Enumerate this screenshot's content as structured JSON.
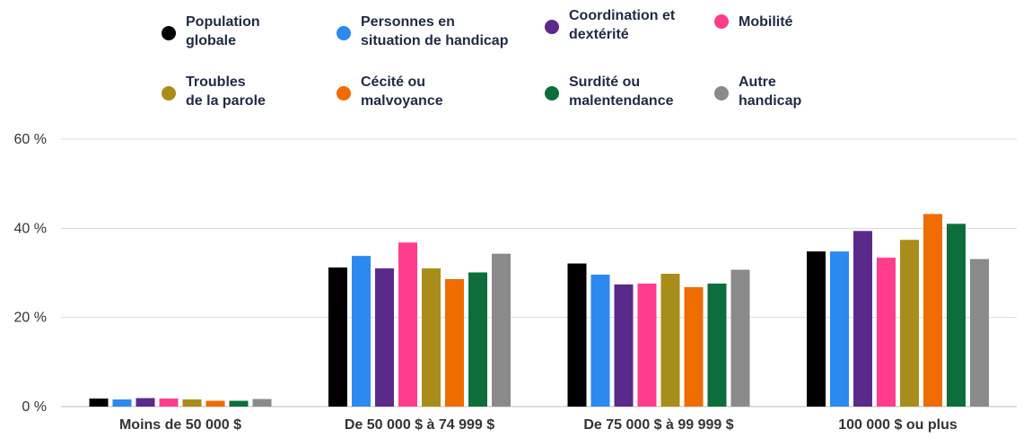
{
  "chart_data": {
    "type": "bar",
    "title": "",
    "xlabel": "",
    "ylabel": "",
    "ylim": [
      0,
      60
    ],
    "yticks": [
      0,
      20,
      40,
      60
    ],
    "ytick_labels": [
      "0 %",
      "20 %",
      "40 %",
      "60 %"
    ],
    "grid": true,
    "legend_position": "top",
    "categories": [
      "Moins de 50 000 $",
      "De 50 000 $ à 74 999 $",
      "De 75 000 $ à 99 999 $",
      "100 000 $ ou plus"
    ],
    "series": [
      {
        "name": "Population globale",
        "legend_lines": [
          "Population",
          "globale"
        ],
        "color": "#000000",
        "values": [
          1.8,
          31.2,
          32.1,
          34.8
        ]
      },
      {
        "name": "Personnes en situation de handicap",
        "legend_lines": [
          "Personnes en",
          "situation de handicap"
        ],
        "color": "#2b89f0",
        "values": [
          1.6,
          33.8,
          29.6,
          34.8
        ]
      },
      {
        "name": "Coordination et dextérité",
        "legend_lines": [
          "Coordination et",
          "dextérité"
        ],
        "color": "#5a2a8a",
        "values": [
          1.9,
          31.0,
          27.4,
          39.4
        ]
      },
      {
        "name": "Mobilité",
        "legend_lines": [
          "Mobilité"
        ],
        "color": "#ff3d8c",
        "values": [
          1.8,
          36.8,
          27.6,
          33.4
        ]
      },
      {
        "name": "Troubles de la parole",
        "legend_lines": [
          "Troubles",
          "de la parole"
        ],
        "color": "#a88d1a",
        "values": [
          1.6,
          31.0,
          29.8,
          37.4
        ]
      },
      {
        "name": "Cécité ou malvoyance",
        "legend_lines": [
          "Cécité ou",
          "malvoyance"
        ],
        "color": "#ee6c00",
        "values": [
          1.3,
          28.6,
          26.8,
          43.2
        ]
      },
      {
        "name": "Surdité ou malentendance",
        "legend_lines": [
          "Surdité ou",
          "malentendance"
        ],
        "color": "#0d6e3b",
        "values": [
          1.3,
          30.1,
          27.6,
          41.0
        ]
      },
      {
        "name": "Autre handicap",
        "legend_lines": [
          "Autre",
          "handicap"
        ],
        "color": "#8a8a8a",
        "values": [
          1.7,
          34.3,
          30.7,
          33.1
        ]
      }
    ]
  }
}
